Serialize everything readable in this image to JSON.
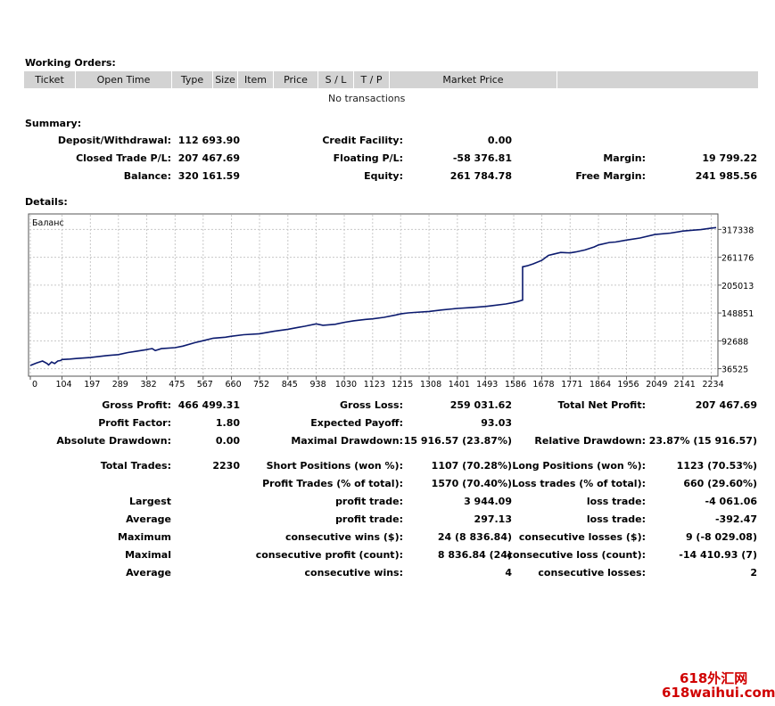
{
  "working_orders": {
    "title": "Working Orders:",
    "columns": [
      "Ticket",
      "Open Time",
      "Type",
      "Size",
      "Item",
      "Price",
      "S / L",
      "T / P",
      "Market Price",
      ""
    ],
    "empty_text": "No transactions"
  },
  "summary": {
    "title": "Summary:",
    "rows": [
      [
        {
          "label": "Deposit/Withdrawal:",
          "value": "112 693.90"
        },
        {
          "label": "Credit Facility:",
          "value": "0.00"
        },
        {
          "label": "",
          "value": ""
        }
      ],
      [
        {
          "label": "Closed Trade P/L:",
          "value": "207 467.69"
        },
        {
          "label": "Floating P/L:",
          "value": "-58 376.81"
        },
        {
          "label": "Margin:",
          "value": "19 799.22"
        }
      ],
      [
        {
          "label": "Balance:",
          "value": "320 161.59"
        },
        {
          "label": "Equity:",
          "value": "261 784.78"
        },
        {
          "label": "Free Margin:",
          "value": "241 985.56"
        }
      ]
    ]
  },
  "details": {
    "title": "Details:",
    "stats_a": [
      [
        {
          "label": "Gross Profit:",
          "value": "466 499.31"
        },
        {
          "label": "Gross Loss:",
          "value": "259 031.62"
        },
        {
          "label": "Total Net Profit:",
          "value": "207 467.69"
        }
      ],
      [
        {
          "label": "Profit Factor:",
          "value": "1.80"
        },
        {
          "label": "Expected Payoff:",
          "value": "93.03"
        },
        {
          "label": "",
          "value": ""
        }
      ],
      [
        {
          "label": "Absolute Drawdown:",
          "value": "0.00"
        },
        {
          "label": "Maximal Drawdown:",
          "value": "15 916.57 (23.87%)"
        },
        {
          "label": "Relative Drawdown:",
          "value": "23.87% (15 916.57)"
        }
      ]
    ],
    "stats_b": [
      [
        {
          "label": "Total Trades:",
          "value": "2230"
        },
        {
          "label": "Short Positions (won %):",
          "value": "1107 (70.28%)"
        },
        {
          "label": "Long Positions (won %):",
          "value": "1123 (70.53%)"
        }
      ],
      [
        {
          "label": "",
          "value": ""
        },
        {
          "label": "Profit Trades (% of total):",
          "value": "1570 (70.40%)"
        },
        {
          "label": "Loss trades (% of total):",
          "value": "660 (29.60%)"
        }
      ],
      [
        {
          "label": "Largest",
          "value": ""
        },
        {
          "label": "profit trade:",
          "value": "3 944.09"
        },
        {
          "label": "loss trade:",
          "value": "-4 061.06"
        }
      ],
      [
        {
          "label": "Average",
          "value": ""
        },
        {
          "label": "profit trade:",
          "value": "297.13"
        },
        {
          "label": "loss trade:",
          "value": "-392.47"
        }
      ],
      [
        {
          "label": "Maximum",
          "value": ""
        },
        {
          "label": "consecutive wins ($):",
          "value": "24 (8 836.84)"
        },
        {
          "label": "consecutive losses ($):",
          "value": "9 (-8 029.08)"
        }
      ],
      [
        {
          "label": "Maximal",
          "value": ""
        },
        {
          "label": "consecutive profit (count):",
          "value": "8 836.84 (24)"
        },
        {
          "label": "consecutive loss (count):",
          "value": "-14 410.93 (7)"
        }
      ],
      [
        {
          "label": "Average",
          "value": ""
        },
        {
          "label": "consecutive wins:",
          "value": "4"
        },
        {
          "label": "consecutive losses:",
          "value": "2"
        }
      ]
    ]
  },
  "chart_data": {
    "type": "line",
    "title": "Баланс",
    "x_ticks": [
      0,
      104,
      197,
      289,
      382,
      475,
      567,
      660,
      752,
      845,
      938,
      1030,
      1123,
      1215,
      1308,
      1401,
      1493,
      1586,
      1678,
      1771,
      1864,
      1956,
      2049,
      2141,
      2234
    ],
    "y_ticks": [
      36525,
      92688,
      148851,
      205013,
      261176,
      317338
    ],
    "xlim": [
      0,
      2250
    ],
    "ylim": [
      25000,
      345000
    ],
    "line_color": "#0b1a6e",
    "series": [
      {
        "x": [
          0,
          20,
          40,
          55,
          60,
          70,
          80,
          90,
          100,
          104,
          130,
          150,
          197,
          250,
          289,
          320,
          350,
          382,
          390,
          400,
          410,
          430,
          475,
          500,
          540,
          567,
          600,
          640,
          660,
          700,
          752,
          800,
          845,
          880,
          900,
          938,
          960,
          1000,
          1030,
          1060,
          1100,
          1123,
          1160,
          1200,
          1215,
          1240,
          1260,
          1308,
          1350,
          1401,
          1450,
          1493,
          1520,
          1560,
          1586,
          1600,
          1615,
          1615,
          1630,
          1650,
          1678,
          1700,
          1720,
          1740,
          1771,
          1790,
          1820,
          1850,
          1864,
          1900,
          1920,
          1956,
          2000,
          2049,
          2100,
          2141,
          2180,
          2200,
          2234,
          2250
        ],
        "y": [
          43000,
          48000,
          52000,
          47000,
          44000,
          50000,
          47000,
          52000,
          53000,
          55000,
          56000,
          57000,
          59000,
          63000,
          65000,
          69000,
          72000,
          75000,
          76000,
          77000,
          73000,
          77000,
          79000,
          82000,
          89000,
          93000,
          98000,
          100000,
          102000,
          105000,
          107000,
          112000,
          116000,
          120000,
          122000,
          127000,
          124000,
          126000,
          130000,
          133000,
          136000,
          137000,
          140000,
          145000,
          147000,
          149000,
          150000,
          152000,
          155000,
          158000,
          160000,
          162000,
          164000,
          167000,
          170000,
          172000,
          175000,
          242000,
          244000,
          248000,
          255000,
          265000,
          268000,
          271000,
          270000,
          272000,
          276000,
          282000,
          286000,
          291000,
          292000,
          296000,
          300000,
          307000,
          310000,
          314000,
          316000,
          317000,
          320000,
          321000
        ]
      }
    ]
  },
  "watermark": {
    "line1": "618外汇网",
    "line2": "618waihui.com"
  }
}
